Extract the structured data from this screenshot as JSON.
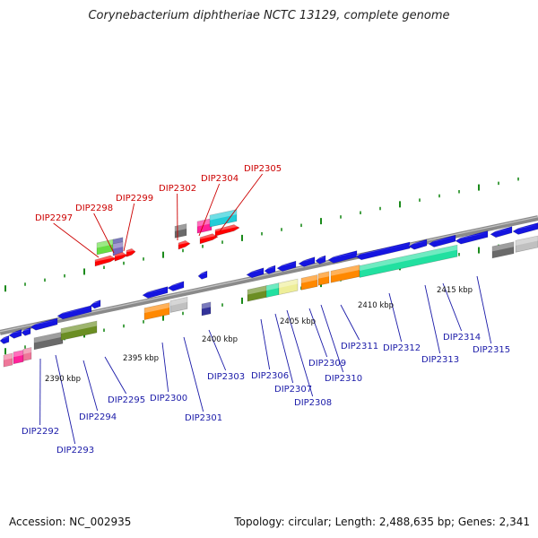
{
  "title": "Corynebacterium diphtheriae NCTC 13129, complete genome",
  "accession": "Accession: NC_002935",
  "summary": "Topology: circular; Length: 2,488,635 bp; Genes: 2,341",
  "colors": {
    "backbone": "#8a8a8a",
    "tick": "#1a8a1a",
    "forward_label": "#cc0000",
    "reverse_label": "#1a1aa8",
    "blue": "#1515e0",
    "red": "#ff0000",
    "green": "#66dd44",
    "gray": "#6a6a6a",
    "pink": "#ff2299",
    "cyan": "#22ccd8",
    "olive": "#6b8e23",
    "teal": "#22e0a0",
    "khaki": "#eeee99",
    "orange": "#ff8800",
    "silver": "#c0c0c0",
    "lightpink": "#ee7799",
    "navy": "#333399",
    "purple": "#7766bb"
  },
  "kbp_marks": [
    "2390 kbp",
    "2395 kbp",
    "2400 kbp",
    "2405 kbp",
    "2410 kbp",
    "2415 kbp"
  ],
  "forward_genes": [
    "DIP2297",
    "DIP2298",
    "DIP2299",
    "DIP2302",
    "DIP2304",
    "DIP2305"
  ],
  "reverse_genes": [
    "DIP2292",
    "DIP2293",
    "DIP2294",
    "DIP2295",
    "DIP2300",
    "DIP2301",
    "DIP2303",
    "DIP2306",
    "DIP2307",
    "DIP2308",
    "DIP2309",
    "DIP2310",
    "DIP2311",
    "DIP2312",
    "DIP2313",
    "DIP2314",
    "DIP2315"
  ]
}
